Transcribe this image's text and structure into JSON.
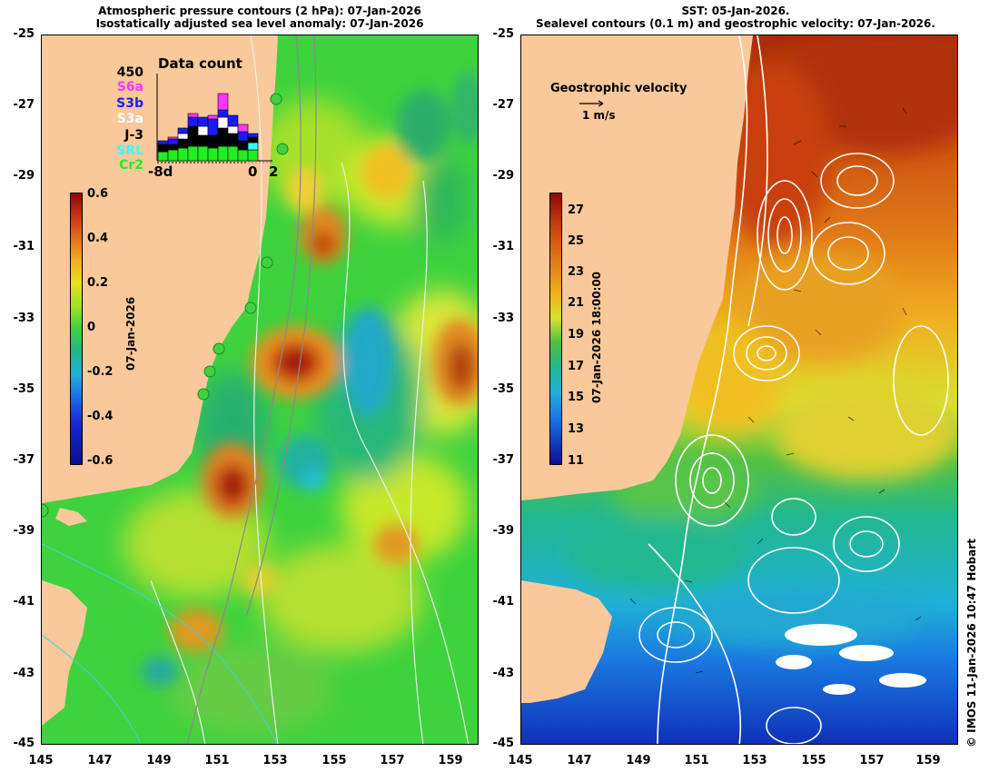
{
  "left_panel": {
    "title_line1": "Atmospheric pressure contours (2 hPa): 07-Jan-2026",
    "title_line2": "Isostatically adjusted sea level anomaly: 07-Jan-2026",
    "colorbar": {
      "ticks": [
        "0.6",
        "0.4",
        "0.2",
        "0",
        "-0.2",
        "-0.4",
        "-0.6"
      ],
      "date_label": "07-Jan-2026"
    },
    "data_count": {
      "title": "Data count",
      "total": "450",
      "missions": [
        {
          "label": "S6a",
          "color": "#ff33ff"
        },
        {
          "label": "S3b",
          "color": "#1a1aff"
        },
        {
          "label": "S3a",
          "color": "#ffffff"
        },
        {
          "label": "J-3",
          "color": "#000000"
        },
        {
          "label": "SRL",
          "color": "#33ffff"
        },
        {
          "label": "Cr2",
          "color": "#22ee22"
        }
      ],
      "xticks": {
        "left": "-8d",
        "mid": "0",
        "right": "2"
      }
    }
  },
  "right_panel": {
    "title_line1": "SST: 05-Jan-2026.",
    "title_line2": "Sealevel contours (0.1 m) and geostrophic velocity: 07-Jan-2026.",
    "velocity_legend": {
      "label": "Geostrophic velocity",
      "scale": "1 m/s"
    },
    "colorbar": {
      "ticks": [
        "27",
        "25",
        "23",
        "21",
        "19",
        "17",
        "15",
        "13",
        "11"
      ],
      "date_label": "07-Jan-2026 18:00:00"
    }
  },
  "y_axis_ticks": [
    "-25",
    "-27",
    "-29",
    "-31",
    "-33",
    "-35",
    "-37",
    "-39",
    "-41",
    "-43",
    "-45"
  ],
  "x_axis_ticks": [
    "145",
    "147",
    "149",
    "151",
    "153",
    "155",
    "157",
    "159"
  ],
  "credit": "© IMOS 11-Jan-2026 10:47 Hobart",
  "colors": {
    "land": "#f9c89b",
    "sla_base": "#3ed23e"
  }
}
